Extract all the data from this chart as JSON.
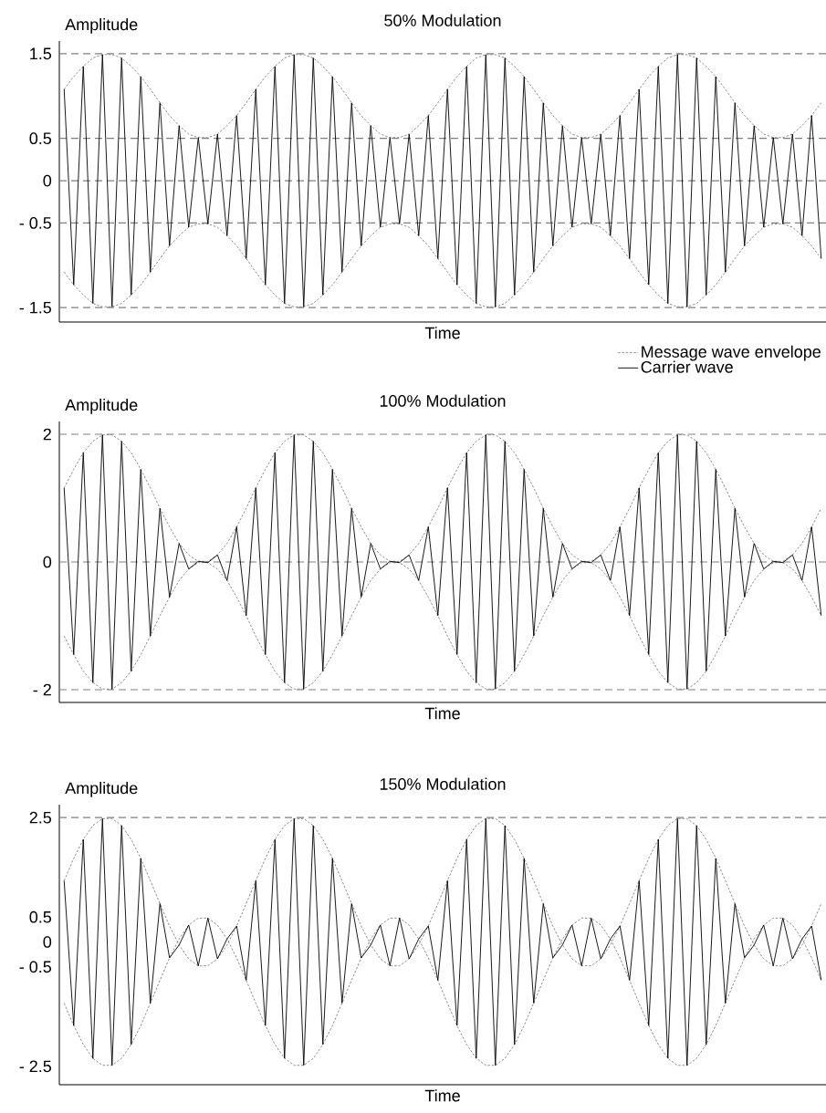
{
  "chart_data": [
    {
      "type": "line",
      "title": "50% Modulation",
      "xlabel": "Time",
      "ylabel": "Amplitude",
      "categories": [
        null,
        null,
        null,
        null,
        null,
        null,
        null,
        null,
        null,
        null,
        null,
        null,
        null,
        null,
        null,
        null,
        null,
        null,
        null,
        null,
        null,
        null,
        null,
        null,
        null,
        null,
        null,
        null,
        null,
        null,
        null,
        null,
        null,
        null,
        null,
        null,
        null,
        null,
        null,
        null,
        null,
        null,
        null,
        null,
        null,
        null,
        null,
        null,
        null,
        null,
        null,
        null,
        null,
        null,
        null,
        null,
        null,
        null,
        null,
        null,
        null,
        null,
        null,
        null,
        null,
        null,
        null,
        null,
        null,
        null,
        null,
        null,
        null,
        null,
        null,
        null,
        null,
        null,
        null,
        null
      ],
      "ylim": [
        -1.67,
        1.65
      ],
      "yticks": [
        {
          "value": 1.5,
          "label": "1.5"
        },
        {
          "value": 0.5,
          "label": "0.5"
        },
        {
          "value": 0,
          "label": "0"
        },
        {
          "value": -0.5,
          "label": "- 0.5"
        },
        {
          "value": -1.5,
          "label": "- 1.5"
        }
      ],
      "marker": "none",
      "legend": "bottom right",
      "ref_lines": [
        {
          "axis": "y",
          "value": 1.5,
          "color": "#808080",
          "line_style": "dashed"
        },
        {
          "axis": "y",
          "value": 0.5,
          "color": "#808080",
          "line_style": "dashed"
        },
        {
          "axis": "y",
          "value": 0,
          "color": "#808080",
          "line_style": "dashed"
        },
        {
          "axis": "y",
          "value": -0.5,
          "color": "#808080",
          "line_style": "dashed"
        },
        {
          "axis": "y",
          "value": -1.5,
          "color": "#808080",
          "line_style": "dashed"
        }
      ],
      "series": [
        {
          "name": "Message wave envelope",
          "color": "#808080",
          "line_style": "dashed",
          "values": [
            1.08,
            1.23,
            1.35,
            1.45,
            1.49,
            1.49,
            1.45,
            1.35,
            1.23,
            1.08,
            0.92,
            0.77,
            0.65,
            0.55,
            0.51,
            0.51,
            0.55,
            0.65,
            0.77,
            0.92,
            1.08,
            1.23,
            1.35,
            1.45,
            1.49,
            1.49,
            1.45,
            1.35,
            1.23,
            1.08,
            0.92,
            0.77,
            0.65,
            0.55,
            0.51,
            0.51,
            0.55,
            0.65,
            0.77,
            0.92,
            1.08,
            1.23,
            1.35,
            1.45,
            1.49,
            1.49,
            1.45,
            1.35,
            1.23,
            1.08,
            0.92,
            0.77,
            0.65,
            0.55,
            0.51,
            0.51,
            0.55,
            0.65,
            0.77,
            0.92,
            1.08,
            1.23,
            1.35,
            1.45,
            1.49,
            1.49,
            1.45,
            1.35,
            1.23,
            1.08,
            0.92,
            0.77,
            0.65,
            0.55,
            0.51,
            0.51,
            0.55,
            0.65,
            0.77,
            0.92
          ]
        },
        {
          "color": "#808080",
          "line_style": "dashed",
          "values": [
            -1.08,
            -1.23,
            -1.35,
            -1.45,
            -1.49,
            -1.49,
            -1.45,
            -1.35,
            -1.23,
            -1.08,
            -0.92,
            -0.77,
            -0.65,
            -0.55,
            -0.51,
            -0.51,
            -0.55,
            -0.65,
            -0.77,
            -0.92,
            -1.08,
            -1.23,
            -1.35,
            -1.45,
            -1.49,
            -1.49,
            -1.45,
            -1.35,
            -1.23,
            -1.08,
            -0.92,
            -0.77,
            -0.65,
            -0.55,
            -0.51,
            -0.51,
            -0.55,
            -0.65,
            -0.77,
            -0.92,
            -1.08,
            -1.23,
            -1.35,
            -1.45,
            -1.49,
            -1.49,
            -1.45,
            -1.35,
            -1.23,
            -1.08,
            -0.92,
            -0.77,
            -0.65,
            -0.55,
            -0.51,
            -0.51,
            -0.55,
            -0.65,
            -0.77,
            -0.92,
            -1.08,
            -1.23,
            -1.35,
            -1.45,
            -1.49,
            -1.49,
            -1.45,
            -1.35,
            -1.23,
            -1.08,
            -0.92,
            -0.77,
            -0.65,
            -0.55,
            -0.51,
            -0.51,
            -0.55,
            -0.65,
            -0.77,
            -0.92
          ]
        },
        {
          "name": "Carrier wave",
          "color": "#000000",
          "line_style": "solid",
          "values": [
            1.08,
            -1.23,
            1.35,
            -1.45,
            1.49,
            -1.49,
            1.45,
            -1.35,
            1.23,
            -1.08,
            0.92,
            -0.77,
            0.65,
            -0.55,
            0.51,
            -0.51,
            0.55,
            -0.65,
            0.77,
            -0.92,
            1.08,
            -1.23,
            1.35,
            -1.45,
            1.49,
            -1.49,
            1.45,
            -1.35,
            1.23,
            -1.08,
            0.92,
            -0.77,
            0.65,
            -0.55,
            0.51,
            -0.51,
            0.55,
            -0.65,
            0.77,
            -0.92,
            1.08,
            -1.23,
            1.35,
            -1.45,
            1.49,
            -1.49,
            1.45,
            -1.35,
            1.23,
            -1.08,
            0.92,
            -0.77,
            0.65,
            -0.55,
            0.51,
            -0.51,
            0.55,
            -0.65,
            0.77,
            -0.92,
            1.08,
            -1.23,
            1.35,
            -1.45,
            1.49,
            -1.49,
            1.45,
            -1.35,
            1.23,
            -1.08,
            0.92,
            -0.77,
            0.65,
            -0.55,
            0.51,
            -0.51,
            0.55,
            -0.65,
            0.77,
            -0.92
          ]
        }
      ]
    },
    {
      "type": "line",
      "title": "100% Modulation",
      "xlabel": "Time",
      "ylabel": "Amplitude",
      "categories": [
        null,
        null,
        null,
        null,
        null,
        null,
        null,
        null,
        null,
        null,
        null,
        null,
        null,
        null,
        null,
        null,
        null,
        null,
        null,
        null,
        null,
        null,
        null,
        null,
        null,
        null,
        null,
        null,
        null,
        null,
        null,
        null,
        null,
        null,
        null,
        null,
        null,
        null,
        null,
        null,
        null,
        null,
        null,
        null,
        null,
        null,
        null,
        null,
        null,
        null,
        null,
        null,
        null,
        null,
        null,
        null,
        null,
        null,
        null,
        null,
        null,
        null,
        null,
        null,
        null,
        null,
        null,
        null,
        null,
        null,
        null,
        null,
        null,
        null,
        null,
        null,
        null,
        null,
        null,
        null
      ],
      "ylim": [
        -2.2,
        2.2
      ],
      "yticks": [
        {
          "value": 2,
          "label": "2"
        },
        {
          "value": 0,
          "label": "0"
        },
        {
          "value": -2,
          "label": "- 2"
        }
      ],
      "marker": "none",
      "ref_lines": [
        {
          "axis": "y",
          "value": 2,
          "color": "#808080",
          "line_style": "dashed"
        },
        {
          "axis": "y",
          "value": 0,
          "color": "#808080",
          "line_style": "dashed"
        },
        {
          "axis": "y",
          "value": -2,
          "color": "#808080",
          "line_style": "dashed"
        }
      ],
      "series": [
        {
          "color": "#808080",
          "line_style": "dashed",
          "values": [
            1.16,
            1.45,
            1.71,
            1.89,
            1.99,
            1.99,
            1.89,
            1.71,
            1.45,
            1.16,
            0.84,
            0.55,
            0.29,
            0.11,
            0.01,
            0.01,
            0.11,
            0.29,
            0.55,
            0.84,
            1.16,
            1.45,
            1.71,
            1.89,
            1.99,
            1.99,
            1.89,
            1.71,
            1.45,
            1.16,
            0.84,
            0.55,
            0.29,
            0.11,
            0.01,
            0.01,
            0.11,
            0.29,
            0.55,
            0.84,
            1.16,
            1.45,
            1.71,
            1.89,
            1.99,
            1.99,
            1.89,
            1.71,
            1.45,
            1.16,
            0.84,
            0.55,
            0.29,
            0.11,
            0.01,
            0.01,
            0.11,
            0.29,
            0.55,
            0.84,
            1.16,
            1.45,
            1.71,
            1.89,
            1.99,
            1.99,
            1.89,
            1.71,
            1.45,
            1.16,
            0.84,
            0.55,
            0.29,
            0.11,
            0.01,
            0.01,
            0.11,
            0.29,
            0.55,
            0.84
          ]
        },
        {
          "color": "#808080",
          "line_style": "dashed",
          "values": [
            -1.16,
            -1.45,
            -1.71,
            -1.89,
            -1.99,
            -1.99,
            -1.89,
            -1.71,
            -1.45,
            -1.16,
            -0.84,
            -0.55,
            -0.29,
            -0.11,
            -0.01,
            -0.01,
            -0.11,
            -0.29,
            -0.55,
            -0.84,
            -1.16,
            -1.45,
            -1.71,
            -1.89,
            -1.99,
            -1.99,
            -1.89,
            -1.71,
            -1.45,
            -1.16,
            -0.84,
            -0.55,
            -0.29,
            -0.11,
            -0.01,
            -0.01,
            -0.11,
            -0.29,
            -0.55,
            -0.84,
            -1.16,
            -1.45,
            -1.71,
            -1.89,
            -1.99,
            -1.99,
            -1.89,
            -1.71,
            -1.45,
            -1.16,
            -0.84,
            -0.55,
            -0.29,
            -0.11,
            -0.01,
            -0.01,
            -0.11,
            -0.29,
            -0.55,
            -0.84,
            -1.16,
            -1.45,
            -1.71,
            -1.89,
            -1.99,
            -1.99,
            -1.89,
            -1.71,
            -1.45,
            -1.16,
            -0.84,
            -0.55,
            -0.29,
            -0.11,
            -0.01,
            -0.01,
            -0.11,
            -0.29,
            -0.55,
            -0.84
          ]
        },
        {
          "color": "#000000",
          "line_style": "solid",
          "values": [
            1.16,
            -1.45,
            1.71,
            -1.89,
            1.99,
            -1.99,
            1.89,
            -1.71,
            1.45,
            -1.16,
            0.84,
            -0.55,
            0.29,
            -0.11,
            0.01,
            -0.01,
            0.11,
            -0.29,
            0.55,
            -0.84,
            1.16,
            -1.45,
            1.71,
            -1.89,
            1.99,
            -1.99,
            1.89,
            -1.71,
            1.45,
            -1.16,
            0.84,
            -0.55,
            0.29,
            -0.11,
            0.01,
            -0.01,
            0.11,
            -0.29,
            0.55,
            -0.84,
            1.16,
            -1.45,
            1.71,
            -1.89,
            1.99,
            -1.99,
            1.89,
            -1.71,
            1.45,
            -1.16,
            0.84,
            -0.55,
            0.29,
            -0.11,
            0.01,
            -0.01,
            0.11,
            -0.29,
            0.55,
            -0.84,
            1.16,
            -1.45,
            1.71,
            -1.89,
            1.99,
            -1.99,
            1.89,
            -1.71,
            1.45,
            -1.16,
            0.84,
            -0.55,
            0.29,
            -0.11,
            0.01,
            -0.01,
            0.11,
            -0.29,
            0.55,
            -0.84
          ]
        }
      ]
    },
    {
      "type": "line",
      "title": "150% Modulation",
      "xlabel": "Time",
      "ylabel": "Amplitude",
      "categories": [
        null,
        null,
        null,
        null,
        null,
        null,
        null,
        null,
        null,
        null,
        null,
        null,
        null,
        null,
        null,
        null,
        null,
        null,
        null,
        null,
        null,
        null,
        null,
        null,
        null,
        null,
        null,
        null,
        null,
        null,
        null,
        null,
        null,
        null,
        null,
        null,
        null,
        null,
        null,
        null,
        null,
        null,
        null,
        null,
        null,
        null,
        null,
        null,
        null,
        null,
        null,
        null,
        null,
        null,
        null,
        null,
        null,
        null,
        null,
        null,
        null,
        null,
        null,
        null,
        null,
        null,
        null,
        null,
        null,
        null,
        null,
        null,
        null,
        null,
        null,
        null,
        null,
        null,
        null,
        null
      ],
      "ylim": [
        -2.87,
        2.76
      ],
      "yticks": [
        {
          "value": 2.5,
          "label": "2.5"
        },
        {
          "value": 0.5,
          "label": "0.5"
        },
        {
          "value": 0,
          "label": "0"
        },
        {
          "value": -0.5,
          "label": "- 0.5"
        },
        {
          "value": -2.5,
          "label": "- 2.5"
        }
      ],
      "marker": "none",
      "ref_lines": [
        {
          "axis": "y",
          "value": 2.5,
          "color": "#808080",
          "line_style": "dashed"
        }
      ],
      "series": [
        {
          "color": "#808080",
          "line_style": "dashed",
          "values": [
            1.23,
            1.68,
            2.06,
            2.34,
            2.48,
            2.48,
            2.34,
            2.06,
            1.68,
            1.23,
            0.77,
            0.32,
            -0.06,
            -0.34,
            -0.48,
            -0.48,
            -0.34,
            -0.06,
            0.32,
            0.77,
            1.23,
            1.68,
            2.06,
            2.34,
            2.48,
            2.48,
            2.34,
            2.06,
            1.68,
            1.23,
            0.77,
            0.32,
            -0.06,
            -0.34,
            -0.48,
            -0.48,
            -0.34,
            -0.06,
            0.32,
            0.77,
            1.23,
            1.68,
            2.06,
            2.34,
            2.48,
            2.48,
            2.34,
            2.06,
            1.68,
            1.23,
            0.77,
            0.32,
            -0.06,
            -0.34,
            -0.48,
            -0.48,
            -0.34,
            -0.06,
            0.32,
            0.77,
            1.23,
            1.68,
            2.06,
            2.34,
            2.48,
            2.48,
            2.34,
            2.06,
            1.68,
            1.23,
            0.77,
            0.32,
            -0.06,
            -0.34,
            -0.48,
            -0.48,
            -0.34,
            -0.06,
            0.32,
            0.77
          ]
        },
        {
          "color": "#808080",
          "line_style": "dashed",
          "values": [
            -1.23,
            -1.68,
            -2.06,
            -2.34,
            -2.48,
            -2.48,
            -2.34,
            -2.06,
            -1.68,
            -1.23,
            -0.77,
            -0.32,
            0.06,
            0.34,
            0.48,
            0.48,
            0.34,
            0.06,
            -0.32,
            -0.77,
            -1.23,
            -1.68,
            -2.06,
            -2.34,
            -2.48,
            -2.48,
            -2.34,
            -2.06,
            -1.68,
            -1.23,
            -0.77,
            -0.32,
            0.06,
            0.34,
            0.48,
            0.48,
            0.34,
            0.06,
            -0.32,
            -0.77,
            -1.23,
            -1.68,
            -2.06,
            -2.34,
            -2.48,
            -2.48,
            -2.34,
            -2.06,
            -1.68,
            -1.23,
            -0.77,
            -0.32,
            0.06,
            0.34,
            0.48,
            0.48,
            0.34,
            0.06,
            -0.32,
            -0.77,
            -1.23,
            -1.68,
            -2.06,
            -2.34,
            -2.48,
            -2.48,
            -2.34,
            -2.06,
            -1.68,
            -1.23,
            -0.77,
            -0.32,
            0.06,
            0.34,
            0.48,
            0.48,
            0.34,
            0.06,
            -0.32,
            -0.77
          ]
        },
        {
          "color": "#000000",
          "line_style": "solid",
          "values": [
            1.23,
            -1.68,
            2.06,
            -2.34,
            2.48,
            -2.48,
            2.34,
            -2.06,
            1.68,
            -1.23,
            0.77,
            -0.32,
            -0.06,
            0.34,
            -0.48,
            0.48,
            -0.34,
            0.06,
            0.32,
            -0.77,
            1.23,
            -1.68,
            2.06,
            -2.34,
            2.48,
            -2.48,
            2.34,
            -2.06,
            1.68,
            -1.23,
            0.77,
            -0.32,
            -0.06,
            0.34,
            -0.48,
            0.48,
            -0.34,
            0.06,
            0.32,
            -0.77,
            1.23,
            -1.68,
            2.06,
            -2.34,
            2.48,
            -2.48,
            2.34,
            -2.06,
            1.68,
            -1.23,
            0.77,
            -0.32,
            -0.06,
            0.34,
            -0.48,
            0.48,
            -0.34,
            0.06,
            0.32,
            -0.77,
            1.23,
            -1.68,
            2.06,
            -2.34,
            2.48,
            -2.48,
            2.34,
            -2.06,
            1.68,
            -1.23,
            0.77,
            -0.32,
            -0.06,
            0.34,
            -0.48,
            0.48,
            -0.34,
            0.06,
            0.32,
            -0.77
          ]
        }
      ]
    }
  ]
}
